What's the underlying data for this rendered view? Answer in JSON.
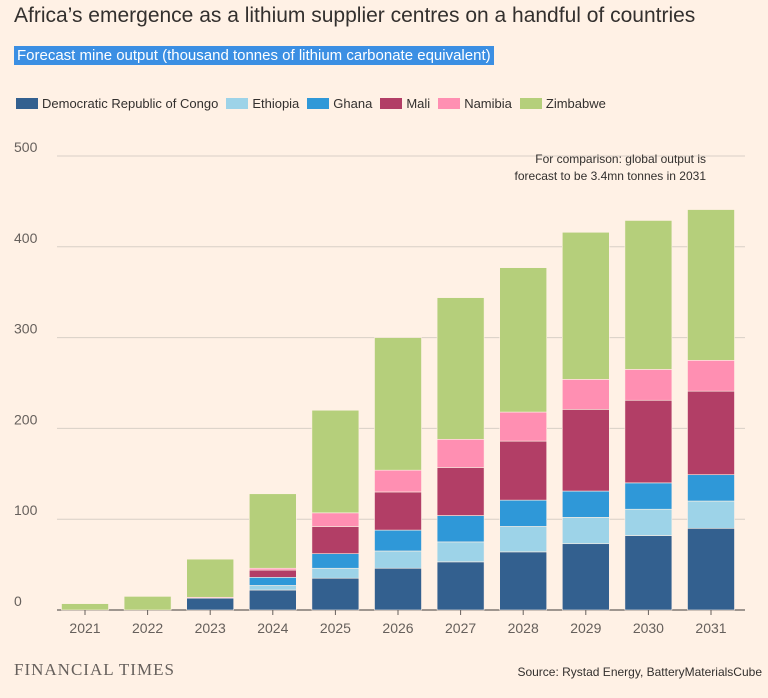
{
  "title": "Africa’s emergence as a lithium supplier centres on a handful of countries",
  "subtitle": "Forecast mine output (thousand tonnes of lithium carbonate equivalent)",
  "footer": {
    "brand": "FINANCIAL TIMES",
    "source": "Source: Rystad Energy, BatteryMaterialsCube"
  },
  "chart_data": {
    "type": "bar",
    "stacked": true,
    "categories": [
      "2021",
      "2022",
      "2023",
      "2024",
      "2025",
      "2026",
      "2027",
      "2028",
      "2029",
      "2030",
      "2031"
    ],
    "ylim": [
      0,
      500
    ],
    "yticks": [
      0,
      100,
      200,
      300,
      400,
      500
    ],
    "grid": true,
    "legend_position": "top-left",
    "annotation": [
      "For comparison: global output is",
      "forecast to be 3.4mn tonnes in 2031"
    ],
    "series": [
      {
        "name": "Democratic Republic of Congo",
        "color": "#33608f",
        "values": [
          0,
          0,
          13,
          22,
          35,
          46,
          53,
          64,
          73,
          82,
          90
        ]
      },
      {
        "name": "Ethiopia",
        "color": "#9dd3e8",
        "values": [
          0,
          0,
          0,
          5,
          11,
          19,
          22,
          28,
          29,
          29,
          30
        ]
      },
      {
        "name": "Ghana",
        "color": "#2f98d8",
        "values": [
          0,
          0,
          0,
          9,
          16,
          23,
          29,
          29,
          29,
          29,
          29
        ]
      },
      {
        "name": "Mali",
        "color": "#b23e66",
        "values": [
          0,
          0,
          0,
          8,
          30,
          42,
          53,
          65,
          90,
          91,
          92
        ]
      },
      {
        "name": "Namibia",
        "color": "#ff8fb2",
        "values": [
          0,
          0,
          1,
          2,
          15,
          24,
          31,
          32,
          33,
          34,
          34
        ]
      },
      {
        "name": "Zimbabwe",
        "color": "#b5cf7b",
        "values": [
          7,
          15,
          42,
          82,
          113,
          146,
          156,
          159,
          162,
          164,
          166
        ]
      }
    ]
  }
}
